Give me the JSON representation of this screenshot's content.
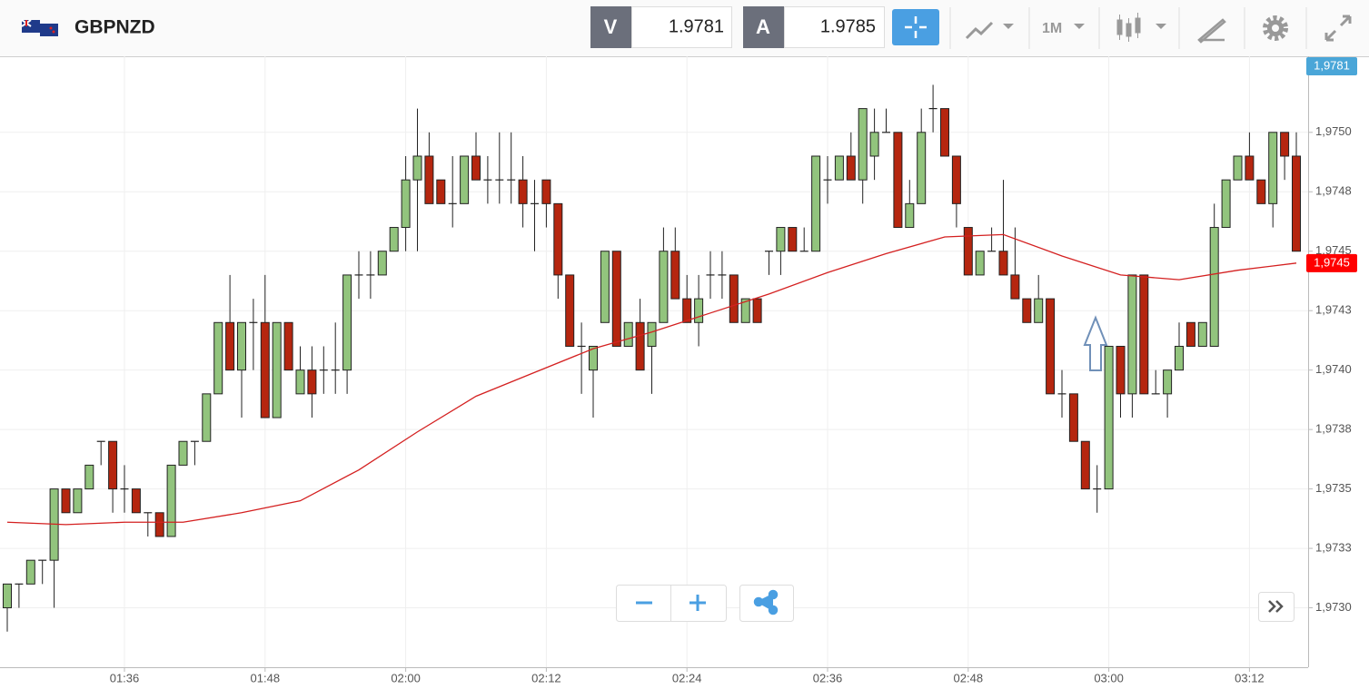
{
  "header": {
    "symbol": "GBPNZD",
    "bid": {
      "label": "V",
      "value": "1.9781"
    },
    "ask": {
      "label": "A",
      "value": "1.9785"
    },
    "timeframe": "1M"
  },
  "chart_data": {
    "type": "candlestick",
    "categories": [
      null,
      null,
      null,
      null,
      null,
      null,
      null,
      null,
      null,
      null,
      "01:36",
      null,
      null,
      null,
      null,
      null,
      null,
      null,
      null,
      null,
      null,
      null,
      "01:48",
      null,
      null,
      null,
      null,
      null,
      null,
      null,
      null,
      null,
      null,
      null,
      "02:00",
      null,
      null,
      null,
      null,
      null,
      null,
      null,
      null,
      null,
      null,
      null,
      "02:12",
      null,
      null,
      null,
      null,
      null,
      null,
      null,
      null,
      null,
      null,
      null,
      "02:24",
      null,
      null,
      null,
      null,
      null,
      null,
      null,
      null,
      null,
      null,
      null,
      "02:36",
      null,
      null,
      null,
      null,
      null,
      null,
      null,
      null,
      null,
      null,
      null,
      "02:48",
      null,
      null,
      null,
      null,
      null,
      null,
      null,
      null,
      null,
      null,
      null,
      "03:00",
      null,
      null,
      null,
      null,
      null,
      null,
      null,
      null,
      null,
      null,
      null,
      "03:12",
      null,
      null,
      null,
      null
    ],
    "open": [
      1.973,
      1.9731,
      1.9731,
      1.9732,
      1.9732,
      1.9735,
      1.9734,
      1.9735,
      1.9737,
      1.9737,
      1.9735,
      1.9735,
      1.9734,
      1.9734,
      1.9733,
      1.9736,
      1.9737,
      1.9737,
      1.9739,
      1.9742,
      1.974,
      1.9742,
      1.9742,
      1.9738,
      1.9742,
      1.9739,
      1.974,
      1.974,
      1.974,
      1.974,
      1.9744,
      1.9744,
      1.9744,
      1.9745,
      1.9746,
      1.9748,
      1.9749,
      1.9748,
      1.9747,
      1.9747,
      1.9749,
      1.9748,
      1.9748,
      1.9748,
      1.9748,
      1.9747,
      1.9748,
      1.9747,
      1.9744,
      1.9741,
      1.974,
      1.9742,
      1.9745,
      1.9741,
      1.9742,
      1.9741,
      1.9742,
      1.9745,
      1.9743,
      1.9742,
      1.9744,
      1.9744,
      1.9744,
      1.9742,
      1.9743,
      1.9745,
      1.9745,
      1.9746,
      1.9745,
      1.9745,
      1.9748,
      1.9748,
      1.9749,
      1.9748,
      1.9749,
      1.975,
      1.975,
      1.9746,
      1.9747,
      1.9751,
      1.9751,
      1.9749,
      1.9746,
      1.9744,
      1.9745,
      1.9745,
      1.9744,
      1.9743,
      1.9742,
      1.9743,
      1.9739,
      1.9739,
      1.9737,
      1.9735,
      1.9735,
      1.9741,
      1.9739,
      1.9744,
      1.9739,
      1.9739,
      1.974,
      1.9742,
      1.9741,
      1.9741,
      1.9746,
      1.9748,
      1.9749,
      1.9748,
      1.9747,
      1.975,
      1.9749
    ],
    "high": [
      1.9731,
      1.9731,
      1.9732,
      1.9732,
      1.9735,
      1.9735,
      1.9735,
      1.9736,
      1.9737,
      1.9737,
      1.9736,
      1.9735,
      1.9734,
      1.9734,
      1.9736,
      1.9737,
      1.9737,
      1.9739,
      1.9742,
      1.9744,
      1.9742,
      1.9743,
      1.9744,
      1.9742,
      1.9742,
      1.9741,
      1.9741,
      1.9741,
      1.9742,
      1.9744,
      1.9745,
      1.9745,
      1.9745,
      1.9746,
      1.9749,
      1.9751,
      1.975,
      1.9748,
      1.9749,
      1.9749,
      1.975,
      1.9749,
      1.975,
      1.975,
      1.9749,
      1.9748,
      1.9748,
      1.9747,
      1.9744,
      1.9742,
      1.9741,
      1.9745,
      1.9745,
      1.9742,
      1.9743,
      1.9742,
      1.9746,
      1.9746,
      1.9744,
      1.9744,
      1.9745,
      1.9745,
      1.9744,
      1.9743,
      1.9743,
      1.9745,
      1.9746,
      1.9746,
      1.9746,
      1.9749,
      1.9749,
      1.9749,
      1.975,
      1.9751,
      1.9751,
      1.9751,
      1.975,
      1.9748,
      1.9751,
      1.9752,
      1.9751,
      1.9749,
      1.9746,
      1.9745,
      1.9746,
      1.9748,
      1.9746,
      1.9743,
      1.9744,
      1.9743,
      1.974,
      1.9739,
      1.9737,
      1.9736,
      1.9741,
      1.9741,
      1.9744,
      1.9744,
      1.974,
      1.974,
      1.9742,
      1.9742,
      1.9742,
      1.9747,
      1.9748,
      1.9749,
      1.975,
      1.9748,
      1.975,
      1.975,
      1.975
    ],
    "low": [
      1.9729,
      1.973,
      1.9731,
      1.9731,
      1.973,
      1.9734,
      1.9734,
      1.9735,
      1.9736,
      1.9734,
      1.9734,
      1.9734,
      1.9733,
      1.9733,
      1.9733,
      1.9736,
      1.9736,
      1.9737,
      1.9739,
      1.974,
      1.9738,
      1.974,
      1.9738,
      1.9738,
      1.974,
      1.9739,
      1.9738,
      1.9739,
      1.9739,
      1.9739,
      1.9743,
      1.9743,
      1.9744,
      1.9745,
      1.9745,
      1.9745,
      1.9747,
      1.9747,
      1.9746,
      1.9747,
      1.9748,
      1.9747,
      1.9747,
      1.9747,
      1.9746,
      1.9745,
      1.9746,
      1.9743,
      1.9741,
      1.9739,
      1.9738,
      1.9742,
      1.9741,
      1.9741,
      1.974,
      1.9739,
      1.9742,
      1.9743,
      1.9742,
      1.9741,
      1.9743,
      1.9743,
      1.9742,
      1.9742,
      1.9742,
      1.9744,
      1.9744,
      1.9745,
      1.9745,
      1.9745,
      1.9747,
      1.9748,
      1.9748,
      1.9747,
      1.9748,
      1.975,
      1.9746,
      1.9746,
      1.9747,
      1.975,
      1.9749,
      1.9746,
      1.9744,
      1.9744,
      1.9745,
      1.9744,
      1.9743,
      1.9742,
      1.9742,
      1.9739,
      1.9738,
      1.9737,
      1.9735,
      1.9734,
      1.9735,
      1.9738,
      1.9738,
      1.9739,
      1.9739,
      1.9738,
      1.974,
      1.9741,
      1.9741,
      1.9741,
      1.9746,
      1.9748,
      1.9748,
      1.9747,
      1.9746,
      1.9748,
      1.9745
    ],
    "close": [
      1.9731,
      1.9731,
      1.9732,
      1.9732,
      1.9735,
      1.9734,
      1.9735,
      1.9736,
      1.9737,
      1.9735,
      1.9735,
      1.9734,
      1.9734,
      1.9733,
      1.9736,
      1.9737,
      1.9737,
      1.9739,
      1.9742,
      1.974,
      1.9742,
      1.9742,
      1.9738,
      1.9742,
      1.974,
      1.974,
      1.9739,
      1.974,
      1.974,
      1.9744,
      1.9744,
      1.9744,
      1.9745,
      1.9746,
      1.9748,
      1.9749,
      1.9747,
      1.9747,
      1.9747,
      1.9749,
      1.9748,
      1.9748,
      1.9748,
      1.9748,
      1.9747,
      1.9747,
      1.9747,
      1.9744,
      1.9741,
      1.9741,
      1.9741,
      1.9745,
      1.9741,
      1.9742,
      1.974,
      1.9742,
      1.9745,
      1.9743,
      1.9742,
      1.9743,
      1.9744,
      1.9744,
      1.9742,
      1.9743,
      1.9742,
      1.9745,
      1.9746,
      1.9745,
      1.9745,
      1.9749,
      1.9748,
      1.9749,
      1.9748,
      1.9751,
      1.975,
      1.975,
      1.9746,
      1.9747,
      1.975,
      1.9751,
      1.9749,
      1.9747,
      1.9744,
      1.9745,
      1.9745,
      1.9744,
      1.9743,
      1.9742,
      1.9743,
      1.9739,
      1.9739,
      1.9737,
      1.9735,
      1.9735,
      1.9741,
      1.9739,
      1.9744,
      1.9739,
      1.9739,
      1.974,
      1.9741,
      1.9741,
      1.9742,
      1.9746,
      1.9748,
      1.9749,
      1.9748,
      1.9747,
      1.975,
      1.9749,
      1.9745
    ],
    "up_color": "#92c47d",
    "down_color": "#b5260f",
    "ylim": [
      1.97275,
      1.97532
    ],
    "yticks": [
      {
        "value": 1.975,
        "label": "1,9750"
      },
      {
        "value": 1.97475,
        "label": "1,9748"
      },
      {
        "value": 1.9745,
        "label": "1,9745"
      },
      {
        "value": 1.97425,
        "label": "1,9743"
      },
      {
        "value": 1.974,
        "label": "1,9740"
      },
      {
        "value": 1.97375,
        "label": "1,9738"
      },
      {
        "value": 1.9735,
        "label": "1,9735"
      },
      {
        "value": 1.97325,
        "label": "1,9733"
      },
      {
        "value": 1.973,
        "label": "1,9730"
      }
    ],
    "grid": true,
    "moving_average": {
      "color": "#d42020",
      "x": [
        0,
        5,
        10,
        15,
        20,
        25,
        30,
        35,
        40,
        45,
        50,
        55,
        60,
        65,
        70,
        75,
        80,
        85,
        90,
        95,
        100,
        105,
        110
      ],
      "values": [
        1.97336,
        1.97335,
        1.97336,
        1.97336,
        1.9734,
        1.97345,
        1.97358,
        1.97374,
        1.97389,
        1.97399,
        1.97409,
        1.97416,
        1.97424,
        1.97432,
        1.97441,
        1.97449,
        1.97456,
        1.97457,
        1.97448,
        1.9744,
        1.97438,
        1.97442,
        1.97445
      ]
    },
    "last_price": {
      "value": 1.97445,
      "label": "1,9745",
      "color": "#ff0000"
    },
    "ask_price": {
      "label": "1,9781",
      "color": "#4aa6d8"
    }
  }
}
